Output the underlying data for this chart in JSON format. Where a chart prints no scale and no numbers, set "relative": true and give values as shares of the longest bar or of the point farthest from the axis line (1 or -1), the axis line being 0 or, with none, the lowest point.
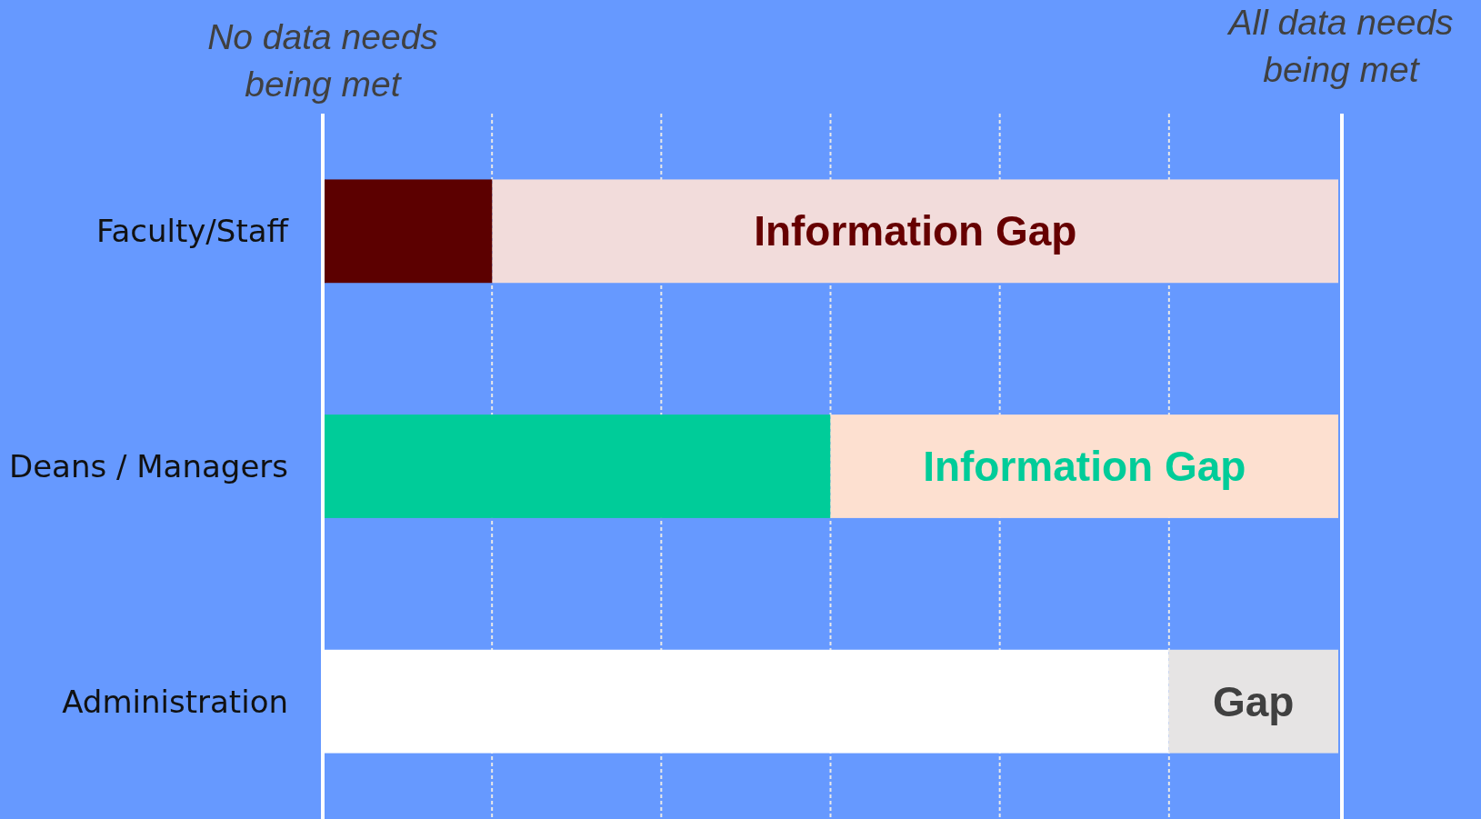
{
  "chart_data": {
    "type": "bar",
    "orientation": "horizontal",
    "stacked": true,
    "relative": true,
    "grid": "x",
    "categories": [
      "Faculty/Staff",
      "Deans / Managers",
      "Administration"
    ],
    "series": [
      {
        "colors": [
          "#5c0000",
          "#00cc99",
          "#ffffff"
        ],
        "values": [
          0.167,
          0.5,
          0.833
        ]
      },
      {
        "colors": [
          "#f2dcdb",
          "#fde0d0",
          "#e6e4e4"
        ],
        "values": [
          0.833,
          0.5,
          0.167
        ]
      }
    ],
    "annotations": [
      "No data needs being met",
      "All data needs being met",
      "Information Gap",
      "Information Gap",
      "Gap"
    ]
  }
}
